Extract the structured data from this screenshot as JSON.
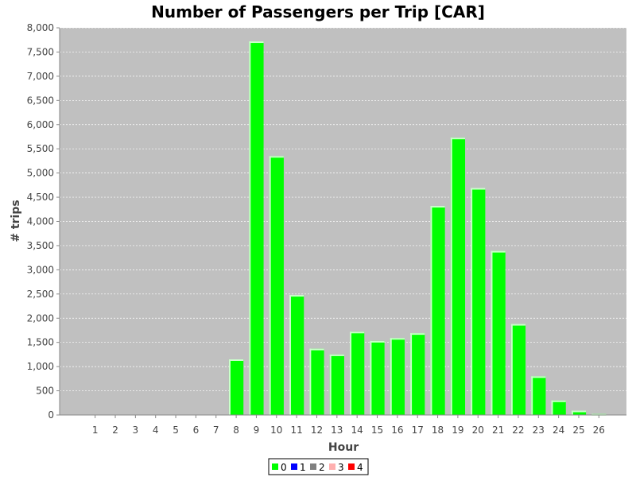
{
  "chart_data": {
    "type": "bar",
    "title": "Number of Passengers per Trip [CAR]",
    "xlabel": "Hour",
    "ylabel": "# trips",
    "ylim": [
      0,
      8000
    ],
    "y_ticks": [
      "0",
      "500",
      "1,000",
      "1,500",
      "2,000",
      "2,500",
      "3,000",
      "3,500",
      "4,000",
      "4,500",
      "5,000",
      "5,500",
      "6,000",
      "6,500",
      "7,000",
      "7,500",
      "8,000"
    ],
    "categories": [
      "1",
      "2",
      "3",
      "4",
      "5",
      "6",
      "7",
      "8",
      "9",
      "10",
      "11",
      "12",
      "13",
      "14",
      "15",
      "16",
      "17",
      "18",
      "19",
      "20",
      "21",
      "22",
      "23",
      "24",
      "25",
      "26"
    ],
    "series": [
      {
        "name": "0",
        "color": "#00ff00",
        "values": [
          0,
          0,
          0,
          0,
          0,
          0,
          0,
          1150,
          7720,
          5350,
          2480,
          1370,
          1250,
          1720,
          1530,
          1590,
          1690,
          4320,
          5730,
          4690,
          3390,
          1880,
          800,
          300,
          90,
          20
        ]
      },
      {
        "name": "1",
        "color": "#0000ff",
        "values": [
          0,
          0,
          0,
          0,
          0,
          0,
          0,
          0,
          0,
          0,
          0,
          0,
          0,
          0,
          0,
          0,
          0,
          0,
          0,
          0,
          0,
          0,
          0,
          0,
          0,
          0
        ]
      },
      {
        "name": "2",
        "color": "#808080",
        "values": [
          0,
          0,
          0,
          0,
          0,
          0,
          0,
          0,
          0,
          0,
          0,
          0,
          0,
          0,
          0,
          0,
          0,
          0,
          0,
          0,
          0,
          0,
          0,
          0,
          0,
          0
        ]
      },
      {
        "name": "3",
        "color": "#ffafaf",
        "values": [
          0,
          0,
          0,
          0,
          0,
          0,
          0,
          0,
          0,
          0,
          0,
          0,
          0,
          0,
          0,
          0,
          0,
          0,
          0,
          0,
          0,
          0,
          0,
          0,
          0,
          0
        ]
      },
      {
        "name": "4",
        "color": "#ff0000",
        "values": [
          0,
          0,
          0,
          0,
          0,
          0,
          0,
          0,
          0,
          0,
          0,
          0,
          0,
          0,
          0,
          0,
          0,
          0,
          0,
          0,
          0,
          0,
          0,
          0,
          0,
          0
        ]
      }
    ],
    "grid": true,
    "plot_background": "#c0c0c0",
    "legend_position": "bottom"
  }
}
